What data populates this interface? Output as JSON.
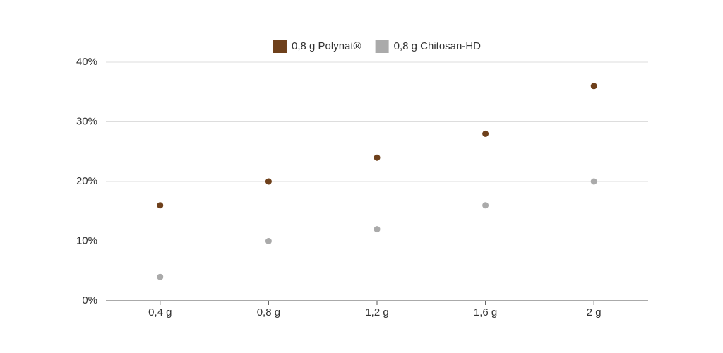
{
  "chart_data": {
    "type": "scatter",
    "categories": [
      "0,4 g",
      "0,8 g",
      "1,2 g",
      "1,6 g",
      "2 g"
    ],
    "series": [
      {
        "name": "0,8 g Polynat®",
        "color": "#6e401b",
        "values": [
          16,
          20,
          24,
          28,
          36
        ]
      },
      {
        "name": "0,8 g Chitosan-HD",
        "color": "#aaaaaa",
        "values": [
          4,
          10,
          12,
          16,
          20
        ]
      }
    ],
    "ylim": [
      0,
      40
    ],
    "yticks": [
      {
        "value": 0,
        "label": "0%"
      },
      {
        "value": 10,
        "label": "10%"
      },
      {
        "value": 20,
        "label": "20%"
      },
      {
        "value": 30,
        "label": "30%"
      },
      {
        "value": 40,
        "label": "40%"
      }
    ],
    "grid": true,
    "legend": "top"
  }
}
